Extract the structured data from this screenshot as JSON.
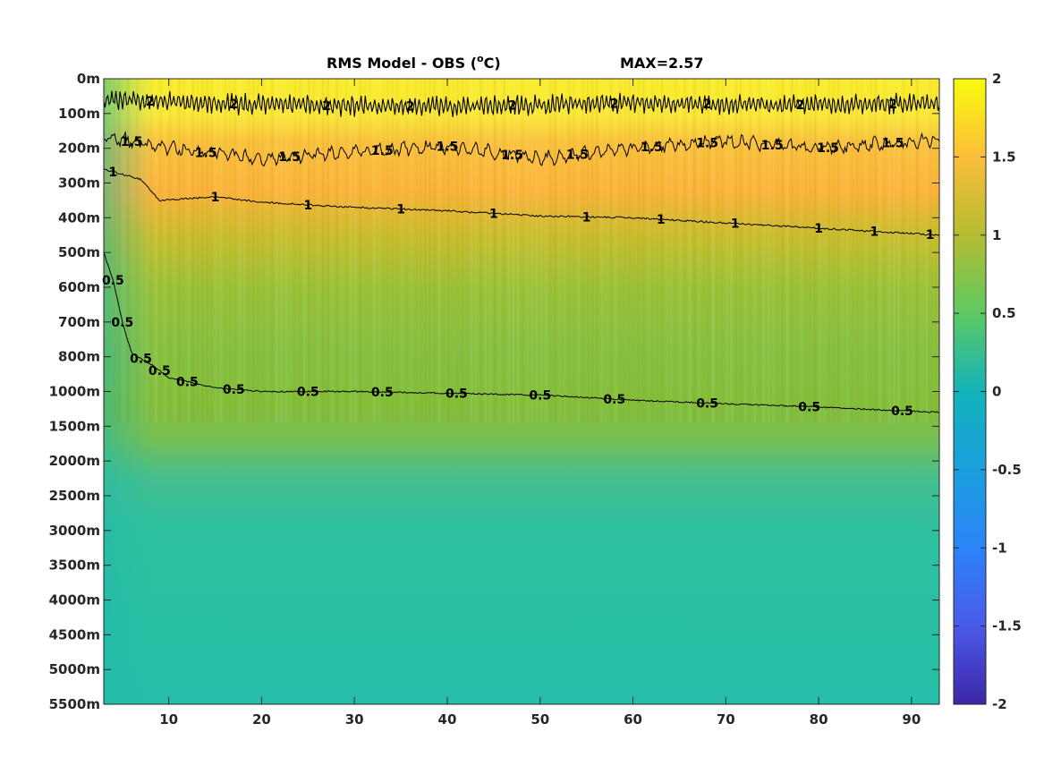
{
  "chart_data": {
    "type": "heatmap",
    "title_main": "RMS Model - OBS (",
    "title_sup": "o",
    "title_unit": "C)",
    "title_max": "MAX=2.57",
    "x": {
      "range": [
        3,
        93
      ],
      "ticks": [
        10,
        20,
        30,
        40,
        50,
        60,
        70,
        80,
        90
      ],
      "tick_labels": [
        "10",
        "20",
        "30",
        "40",
        "50",
        "60",
        "70",
        "80",
        "90"
      ]
    },
    "y": {
      "tick_labels": [
        "0m",
        "100m",
        "200m",
        "300m",
        "400m",
        "500m",
        "600m",
        "700m",
        "800m",
        "1000m",
        "1500m",
        "2000m",
        "2500m",
        "3000m",
        "3500m",
        "4000m",
        "4500m",
        "5000m",
        "5500m"
      ]
    },
    "colorbar": {
      "range": [
        -2,
        2
      ],
      "ticks": [
        2,
        1.5,
        1,
        0.5,
        0,
        -0.5,
        -1,
        -1.5,
        -2
      ],
      "tick_labels": [
        "2",
        "1.5",
        "1",
        "0.5",
        "0",
        "-0.5",
        "-1",
        "-1.5",
        "-2"
      ],
      "colormap": "parula"
    },
    "contours": [
      {
        "level": 2,
        "label": "2",
        "depth_index": [
          [
            3,
            0.6
          ],
          [
            20,
            0.75
          ],
          [
            40,
            0.8
          ],
          [
            60,
            0.7
          ],
          [
            80,
            0.75
          ],
          [
            93,
            0.7
          ]
        ],
        "label_x": [
          8,
          17,
          27,
          36,
          47,
          58,
          68,
          78,
          88
        ]
      },
      {
        "level": 1.5,
        "label": "1.5",
        "depth_index": [
          [
            3,
            1.65
          ],
          [
            10,
            2.0
          ],
          [
            20,
            2.3
          ],
          [
            30,
            2.1
          ],
          [
            40,
            1.95
          ],
          [
            50,
            2.3
          ],
          [
            60,
            2.0
          ],
          [
            70,
            1.8
          ],
          [
            80,
            2.0
          ],
          [
            93,
            1.75
          ]
        ],
        "label_x": [
          6,
          14,
          23,
          33,
          40,
          47,
          54,
          62,
          68,
          75,
          81,
          88
        ]
      },
      {
        "level": 1,
        "label": "1",
        "depth_index": [
          [
            3,
            2.6
          ],
          [
            7,
            2.9
          ],
          [
            9,
            3.5
          ],
          [
            15,
            3.4
          ],
          [
            20,
            3.55
          ],
          [
            30,
            3.7
          ],
          [
            40,
            3.8
          ],
          [
            50,
            3.95
          ],
          [
            60,
            4.0
          ],
          [
            70,
            4.15
          ],
          [
            80,
            4.3
          ],
          [
            93,
            4.5
          ]
        ],
        "label_x": [
          4,
          15,
          25,
          35,
          45,
          55,
          63,
          71,
          80,
          86,
          92
        ]
      },
      {
        "level": 0.5,
        "label": "0.5",
        "depth_index": [
          [
            3,
            5.0
          ],
          [
            4,
            5.8
          ],
          [
            5,
            7.0
          ],
          [
            6,
            7.9
          ],
          [
            8,
            8.2
          ],
          [
            10,
            8.6
          ],
          [
            15,
            8.9
          ],
          [
            20,
            9.0
          ],
          [
            30,
            9.0
          ],
          [
            40,
            9.05
          ],
          [
            50,
            9.1
          ],
          [
            60,
            9.25
          ],
          [
            70,
            9.35
          ],
          [
            80,
            9.45
          ],
          [
            93,
            9.6
          ]
        ],
        "label_x": [
          4,
          5,
          7,
          9,
          12,
          17,
          25,
          33,
          41,
          50,
          58,
          68,
          79,
          89
        ]
      }
    ]
  }
}
